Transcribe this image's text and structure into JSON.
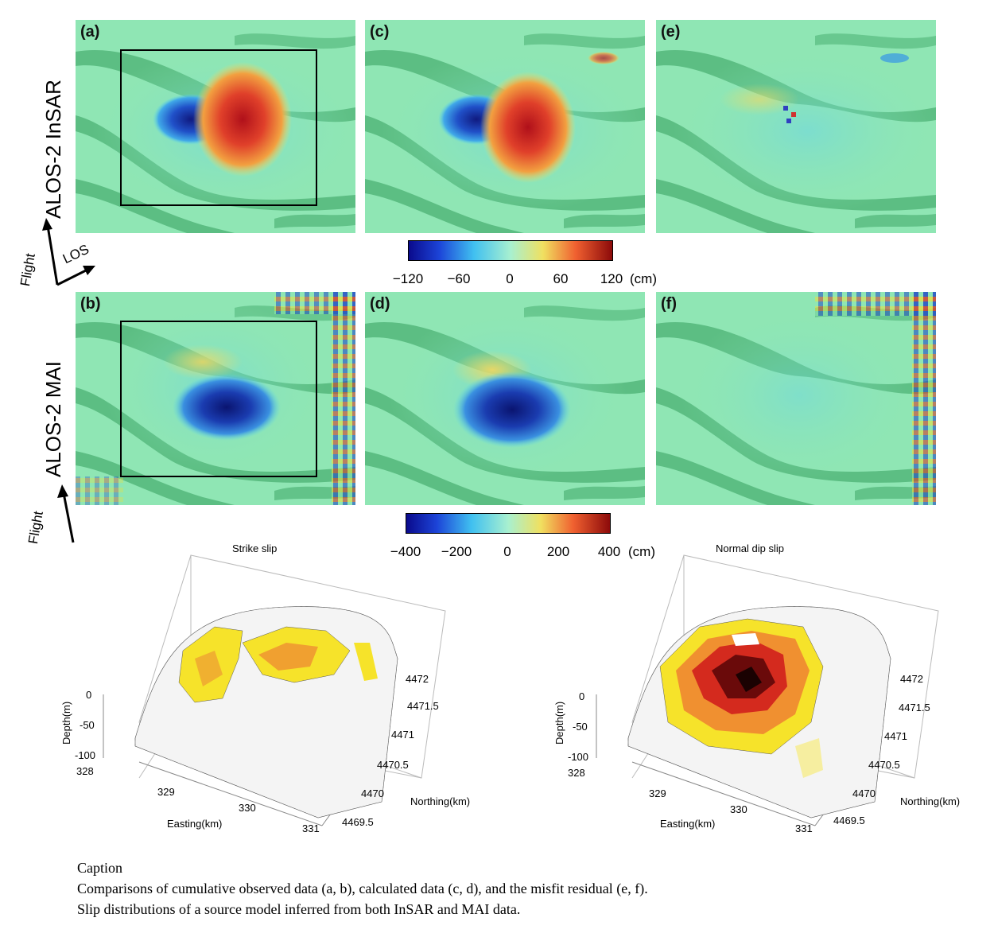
{
  "figure": {
    "row_labels": {
      "insar": "ALOS-2 InSAR",
      "mai": "ALOS-2 MAI"
    },
    "flight_label": "Flight",
    "los_label": "LOS",
    "panel_labels": [
      "(a)",
      "(b)",
      "(c)",
      "(d)",
      "(e)",
      "(f)"
    ],
    "colorbar_insar": {
      "ticks": [
        "−120",
        "−60",
        "0",
        "60",
        "120"
      ],
      "unit": "(cm)"
    },
    "colorbar_mai": {
      "ticks": [
        "−400",
        "−200",
        "0",
        "200",
        "400"
      ],
      "unit": "(cm)"
    }
  },
  "plots": {
    "strike": {
      "title": "Strike slip",
      "zlabel": "Depth(m)",
      "zticks": [
        "0",
        "-50",
        "-100"
      ],
      "xlabel": "Easting(km)",
      "xticks": [
        "328",
        "329",
        "330",
        "331"
      ],
      "ylabel": "Northing(km)",
      "yticks": [
        "4472",
        "4471.5",
        "4471",
        "4470.5",
        "4470",
        "4469.5"
      ]
    },
    "dip": {
      "title": "Normal dip slip",
      "zlabel": "Depth(m)",
      "zticks": [
        "0",
        "-50",
        "-100"
      ],
      "xlabel": "Easting(km)",
      "xticks": [
        "328",
        "329",
        "330",
        "331"
      ],
      "ylabel": "Northing(km)",
      "yticks": [
        "4472",
        "4471.5",
        "4471",
        "4470.5",
        "4470",
        "4469.5"
      ]
    }
  },
  "caption": {
    "heading": "Caption",
    "line1": "Comparisons of cumulative observed data (a, b), calculated data (c, d), and the misfit residual (e, f).",
    "line2": "Slip distributions of a source model inferred from both InSAR and MAI data."
  },
  "colors": {
    "background_green": "#8fe6b4",
    "stripe_green": "#4fb477",
    "positive": "#d7261e",
    "negative": "#1b2f9e"
  }
}
